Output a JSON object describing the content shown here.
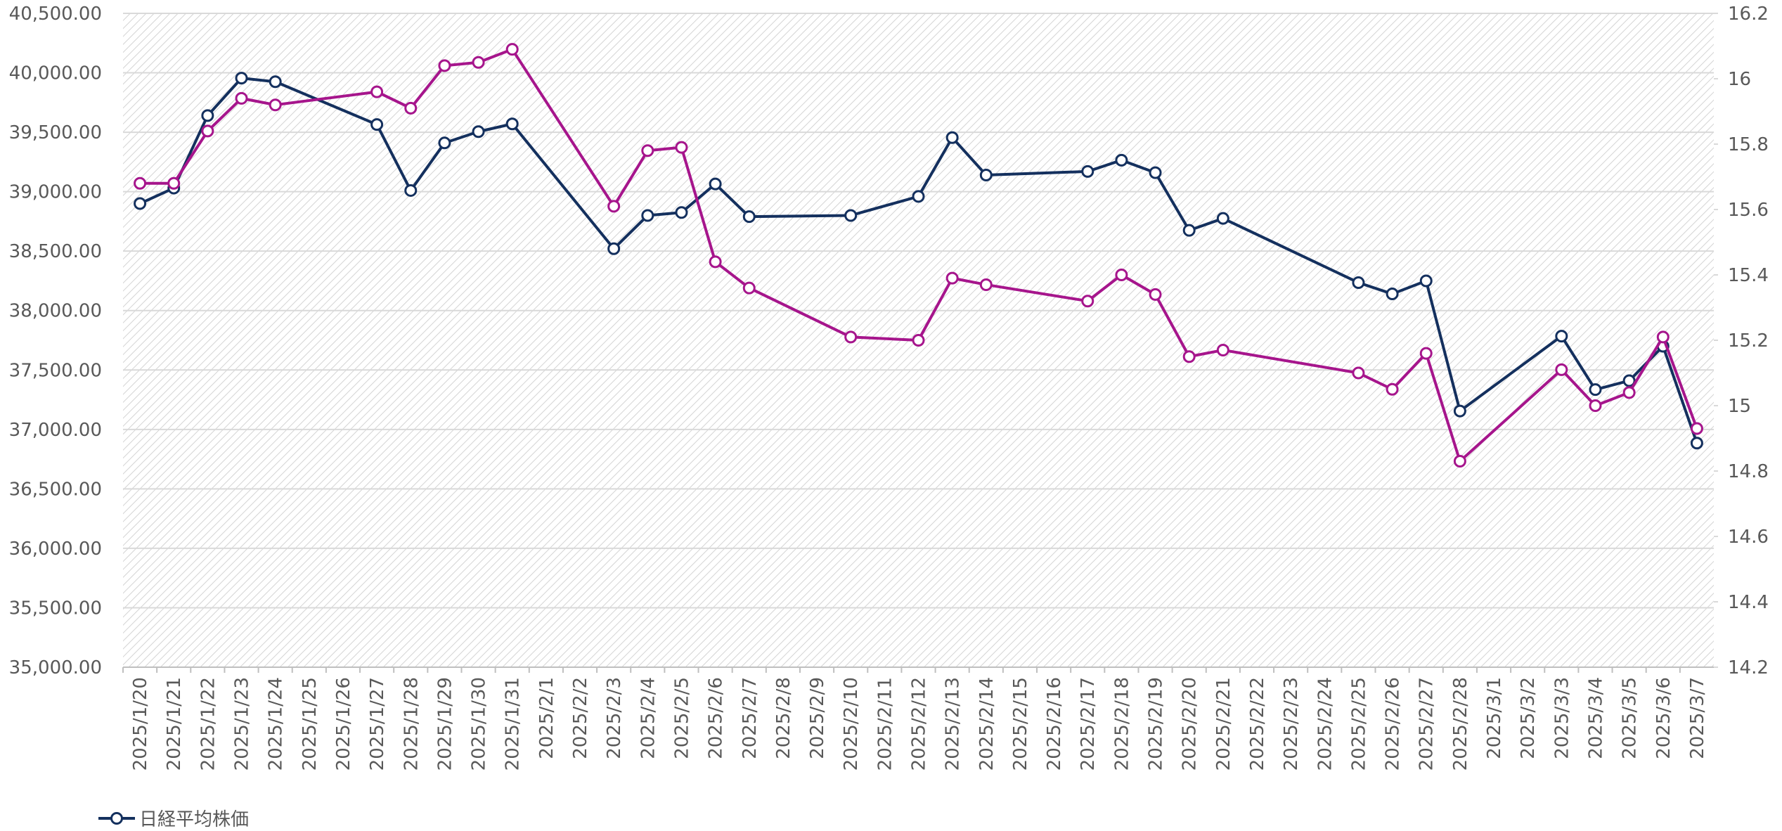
{
  "chart_data": {
    "type": "line",
    "categories": [
      "2025/1/20",
      "2025/1/21",
      "2025/1/22",
      "2025/1/23",
      "2025/1/24",
      "2025/1/25",
      "2025/1/26",
      "2025/1/27",
      "2025/1/28",
      "2025/1/29",
      "2025/1/30",
      "2025/1/31",
      "2025/2/1",
      "2025/2/2",
      "2025/2/3",
      "2025/2/4",
      "2025/2/5",
      "2025/2/6",
      "2025/2/7",
      "2025/2/8",
      "2025/2/9",
      "2025/2/10",
      "2025/2/11",
      "2025/2/12",
      "2025/2/13",
      "2025/2/14",
      "2025/2/15",
      "2025/2/16",
      "2025/2/17",
      "2025/2/18",
      "2025/2/19",
      "2025/2/20",
      "2025/2/21",
      "2025/2/22",
      "2025/2/23",
      "2025/2/24",
      "2025/2/25",
      "2025/2/26",
      "2025/2/27",
      "2025/2/28",
      "2025/3/1",
      "2025/3/2",
      "2025/3/3",
      "2025/3/4",
      "2025/3/5",
      "2025/3/6",
      "2025/3/7"
    ],
    "series": [
      {
        "name": "日経平均株価",
        "color": "#14305e",
        "values": [
          38900,
          39030,
          39640,
          39955,
          39925,
          null,
          null,
          39565,
          39010,
          39410,
          39505,
          39570,
          null,
          null,
          38520,
          38800,
          38825,
          39065,
          38790,
          null,
          null,
          38800,
          null,
          38960,
          39455,
          39140,
          null,
          null,
          39170,
          39265,
          39160,
          38675,
          38775,
          null,
          null,
          null,
          38235,
          38140,
          38250,
          37155,
          null,
          null,
          37785,
          37335,
          37410,
          37700,
          36885
        ]
      },
      {
        "color": "#a6158c",
        "axis": "y2",
        "values": [
          15.68,
          15.68,
          15.84,
          15.94,
          15.92,
          null,
          null,
          15.96,
          15.91,
          16.04,
          16.05,
          16.09,
          null,
          null,
          15.61,
          15.78,
          15.79,
          15.44,
          15.36,
          null,
          null,
          15.21,
          null,
          15.2,
          15.39,
          15.37,
          null,
          null,
          15.32,
          15.4,
          15.34,
          15.15,
          15.17,
          null,
          null,
          null,
          15.1,
          15.05,
          15.16,
          14.83,
          null,
          null,
          15.11,
          15.0,
          15.04,
          15.21,
          14.93
        ]
      }
    ],
    "span_gaps": true,
    "ylim": [
      35000,
      40500
    ],
    "yticks": [
      {
        "value": 35000,
        "label": "35,000.00"
      },
      {
        "value": 35500,
        "label": "35,500.00"
      },
      {
        "value": 36000,
        "label": "36,000.00"
      },
      {
        "value": 36500,
        "label": "36,500.00"
      },
      {
        "value": 37000,
        "label": "37,000.00"
      },
      {
        "value": 37500,
        "label": "37,500.00"
      },
      {
        "value": 38000,
        "label": "38,000.00"
      },
      {
        "value": 38500,
        "label": "38,500.00"
      },
      {
        "value": 39000,
        "label": "39,000.00"
      },
      {
        "value": 39500,
        "label": "39,500.00"
      },
      {
        "value": 40000,
        "label": "40,000.00"
      },
      {
        "value": 40500,
        "label": "40,500.00"
      }
    ],
    "y2lim": [
      14.2,
      16.2
    ],
    "y2ticks": [
      14.2,
      14.4,
      14.6,
      14.8,
      15,
      15.2,
      15.4,
      15.6,
      15.8,
      16,
      16.2
    ],
    "grid": true,
    "legend": "bottom-left"
  }
}
